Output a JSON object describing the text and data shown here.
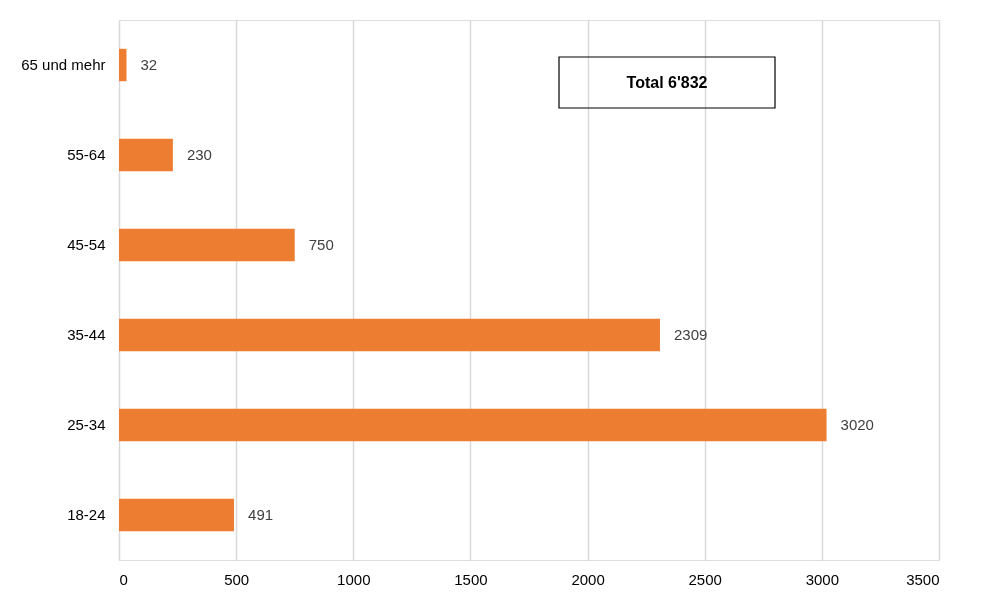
{
  "chart_data": {
    "type": "bar",
    "orientation": "horizontal",
    "categories": [
      "65 und mehr",
      "55-64",
      "45-54",
      "35-44",
      "25-34",
      "18-24"
    ],
    "values": [
      32,
      230,
      750,
      2309,
      3020,
      491
    ],
    "color": "#ed7d31",
    "xlim": [
      0,
      3500
    ],
    "xticks": [
      0,
      500,
      1000,
      1500,
      2000,
      2500,
      3000,
      3500
    ],
    "grid": "x",
    "data_labels": true,
    "annotations": [
      "Total 6'832"
    ]
  }
}
